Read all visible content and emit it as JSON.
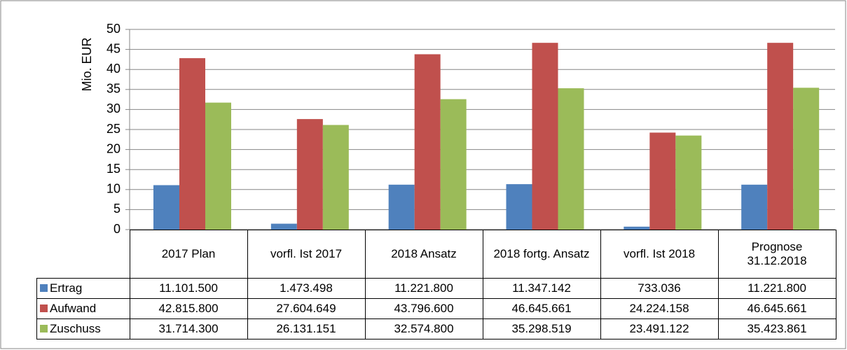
{
  "chart_data": {
    "type": "bar",
    "y_label": "Mio. EUR",
    "categories": [
      "2017 Plan",
      "vorfl. Ist 2017",
      "2018 Ansatz",
      "2018 fortg. Ansatz",
      "vorfl. Ist 2018",
      "Prognose 31.12.2018"
    ],
    "series": [
      {
        "name": "Ertrag",
        "color": "#4f81bd",
        "values": [
          11.1015,
          1.473498,
          11.2218,
          11.347142,
          0.733036,
          11.2218
        ],
        "value_labels": [
          "11.101.500",
          "1.473.498",
          "11.221.800",
          "11.347.142",
          "733.036",
          "11.221.800"
        ]
      },
      {
        "name": "Aufwand",
        "color": "#c0504d",
        "values": [
          42.8158,
          27.604649,
          43.7966,
          46.645661,
          24.224158,
          46.645661
        ],
        "value_labels": [
          "42.815.800",
          "27.604.649",
          "43.796.600",
          "46.645.661",
          "24.224.158",
          "46.645.661"
        ]
      },
      {
        "name": "Zuschuss",
        "color": "#9bbb59",
        "values": [
          31.7143,
          26.131151,
          32.5748,
          35.298519,
          23.491122,
          35.423861
        ],
        "value_labels": [
          "31.714.300",
          "26.131.151",
          "32.574.800",
          "35.298.519",
          "23.491.122",
          "35.423.861"
        ]
      }
    ],
    "ylim": [
      0,
      50
    ],
    "yticks": [
      0,
      5,
      10,
      15,
      20,
      25,
      30,
      35,
      40,
      45,
      50
    ],
    "grid": true
  }
}
